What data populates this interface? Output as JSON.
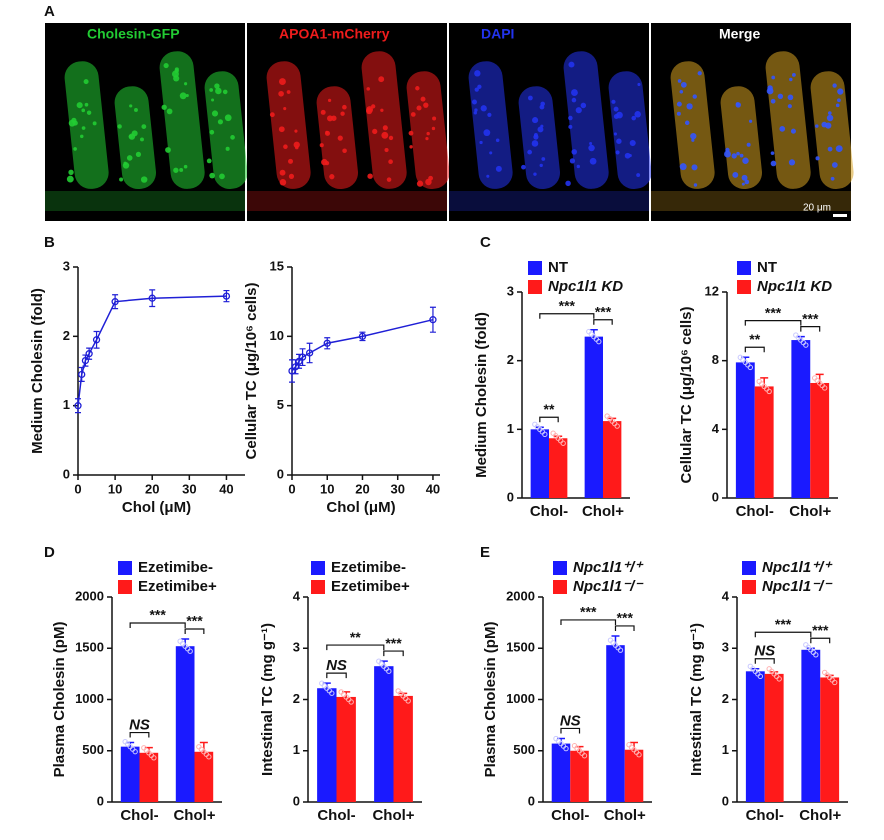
{
  "panel_labels": [
    "A",
    "B",
    "C",
    "D",
    "E"
  ],
  "images": [
    {
      "label": "Cholesin-GFP",
      "color": "#22cc33"
    },
    {
      "label": "APOA1-mCherry",
      "color": "#ee1c1c"
    },
    {
      "label": "DAPI",
      "color": "#2233ee"
    },
    {
      "label": "Merge",
      "color": "#d6a020"
    }
  ],
  "scale_bar": "20 μm",
  "chart_data": [
    {
      "type": "scatter",
      "ylabel": "Medium Cholesin (fold)",
      "xlabel": "Chol (μM)",
      "color": "#1f1fd6",
      "x": [
        0,
        1,
        2,
        3,
        5,
        10,
        20,
        40
      ],
      "values": [
        1.0,
        1.45,
        1.65,
        1.75,
        1.95,
        2.5,
        2.55,
        2.58
      ],
      "errors": [
        0.1,
        0.1,
        0.08,
        0.08,
        0.12,
        0.1,
        0.12,
        0.08
      ],
      "xlim": [
        0,
        45
      ],
      "xticks": [
        0,
        10,
        20,
        30,
        40
      ],
      "ylim": [
        0,
        3
      ],
      "yticks": [
        0,
        1,
        2,
        3
      ]
    },
    {
      "type": "scatter",
      "ylabel": "Cellular TC (μg/10⁶ cells)",
      "xlabel": "Chol (μM)",
      "color": "#1f1fd6",
      "x": [
        0,
        1,
        2,
        3,
        5,
        10,
        20,
        40
      ],
      "values": [
        7.5,
        7.8,
        8.2,
        8.5,
        8.8,
        9.5,
        10.0,
        11.2
      ],
      "errors": [
        0.8,
        0.5,
        0.5,
        0.6,
        0.7,
        0.4,
        0.3,
        0.9
      ],
      "xlim": [
        0,
        42
      ],
      "xticks": [
        0,
        10,
        20,
        30,
        40
      ],
      "ylim": [
        0,
        15
      ],
      "yticks": [
        0,
        5,
        10,
        15
      ]
    },
    {
      "type": "bar",
      "ylabel": "Medium Cholesin (fold)",
      "categories": [
        "Chol-",
        "Chol+"
      ],
      "series": [
        {
          "name": "NT",
          "color": "#1a1aff",
          "values": [
            1.0,
            2.35
          ],
          "errors": [
            0.03,
            0.1
          ]
        },
        {
          "name": "Npc1l1 KD",
          "color": "#ff1a1a",
          "values": [
            0.87,
            1.12
          ],
          "errors": [
            0.03,
            0.04
          ]
        }
      ],
      "annotations": [
        "**",
        "***",
        "***"
      ],
      "ylim": [
        0,
        3
      ],
      "yticks": [
        0,
        1,
        2,
        3
      ]
    },
    {
      "type": "bar",
      "ylabel": "Cellular TC (μg/10⁶ cells)",
      "categories": [
        "Chol-",
        "Chol+"
      ],
      "series": [
        {
          "name": "NT",
          "color": "#1a1aff",
          "values": [
            7.9,
            9.2
          ],
          "errors": [
            0.3,
            0.2
          ]
        },
        {
          "name": "Npc1l1 KD",
          "color": "#ff1a1a",
          "values": [
            6.5,
            6.7
          ],
          "errors": [
            0.5,
            0.5
          ]
        }
      ],
      "annotations": [
        "**",
        "***",
        "***"
      ],
      "ylim": [
        0,
        12
      ],
      "yticks": [
        0,
        4,
        8,
        12
      ]
    },
    {
      "type": "bar",
      "ylabel": "Plasma Cholesin (pM)",
      "categories": [
        "Chol-",
        "Chol+"
      ],
      "series": [
        {
          "name": "Ezetimibe-",
          "color": "#1a1aff",
          "values": [
            540,
            1520
          ],
          "errors": [
            40,
            70
          ]
        },
        {
          "name": "Ezetimibe+",
          "color": "#ff1a1a",
          "values": [
            480,
            490
          ],
          "errors": [
            50,
            90
          ]
        }
      ],
      "annotations": [
        "NS",
        "***",
        "***"
      ],
      "ylim": [
        0,
        2000
      ],
      "yticks": [
        0,
        500,
        1000,
        1500,
        2000
      ]
    },
    {
      "type": "bar",
      "ylabel": "Intestinal TC (mg g⁻¹)",
      "categories": [
        "Chol-",
        "Chol+"
      ],
      "series": [
        {
          "name": "Ezetimibe-",
          "color": "#1a1aff",
          "values": [
            2.22,
            2.65
          ],
          "errors": [
            0.1,
            0.1
          ]
        },
        {
          "name": "Ezetimibe+",
          "color": "#ff1a1a",
          "values": [
            2.05,
            2.07
          ],
          "errors": [
            0.1,
            0.05
          ]
        }
      ],
      "annotations": [
        "NS",
        "**",
        "***"
      ],
      "ylim": [
        0,
        4
      ],
      "yticks": [
        0,
        1,
        2,
        3,
        4
      ]
    },
    {
      "type": "bar",
      "ylabel": "Plasma Cholesin (pM)",
      "categories": [
        "Chol-",
        "Chol+"
      ],
      "series": [
        {
          "name": "Npc1l1⁺/⁺",
          "color": "#1a1aff",
          "values": [
            570,
            1530
          ],
          "errors": [
            50,
            90
          ]
        },
        {
          "name": "Npc1l1⁻/⁻",
          "color": "#ff1a1a",
          "values": [
            500,
            510
          ],
          "errors": [
            40,
            70
          ]
        }
      ],
      "annotations": [
        "NS",
        "***",
        "***"
      ],
      "ylim": [
        0,
        2000
      ],
      "yticks": [
        0,
        500,
        1000,
        1500,
        2000
      ]
    },
    {
      "type": "bar",
      "ylabel": "Intestinal TC (mg g⁻¹)",
      "categories": [
        "Chol-",
        "Chol+"
      ],
      "series": [
        {
          "name": "Npc1l1⁺/⁺",
          "color": "#1a1aff",
          "values": [
            2.55,
            2.97
          ],
          "errors": [
            0.05,
            0.03
          ]
        },
        {
          "name": "Npc1l1⁻/⁻",
          "color": "#ff1a1a",
          "values": [
            2.5,
            2.43
          ],
          "errors": [
            0.04,
            0.04
          ]
        }
      ],
      "annotations": [
        "NS",
        "***",
        "***"
      ],
      "ylim": [
        0,
        4
      ],
      "yticks": [
        0,
        1,
        2,
        3,
        4
      ]
    }
  ]
}
